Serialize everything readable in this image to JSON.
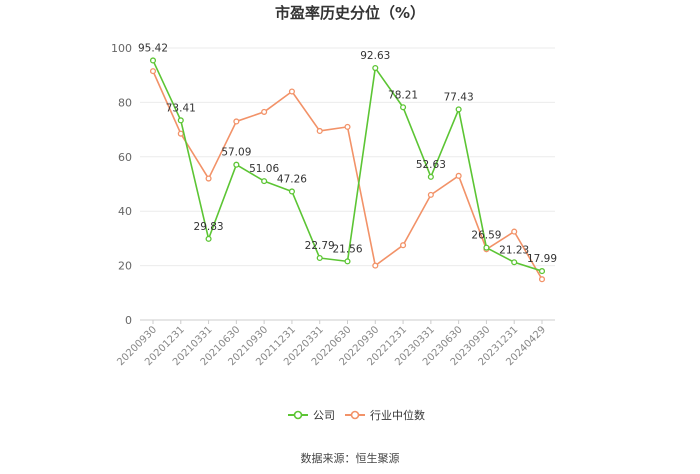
{
  "chart_data": {
    "type": "line",
    "title": "市盈率历史分位（%）",
    "xlabel": "",
    "ylabel": "",
    "ylim": [
      0,
      100
    ],
    "yticks": [
      0,
      20,
      40,
      60,
      80,
      100
    ],
    "grid": true,
    "legend": "bottom",
    "categories": [
      "20200930",
      "20201231",
      "20210331",
      "20210630",
      "20210930",
      "20211231",
      "20220331",
      "20220630",
      "20220930",
      "20221231",
      "20230331",
      "20230630",
      "20230930",
      "20231231",
      "20240429"
    ],
    "series": [
      {
        "name": "公司",
        "color": "#5cc534",
        "values": [
          95.42,
          73.41,
          29.83,
          57.09,
          51.06,
          47.26,
          22.79,
          21.56,
          92.63,
          78.21,
          52.63,
          77.43,
          26.59,
          21.23,
          17.99
        ],
        "labels": [
          "95.42",
          "73.41",
          "29.83",
          "57.09",
          "51.06",
          "47.26",
          "22.79",
          "21.56",
          "92.63",
          "78.21",
          "52.63",
          "77.43",
          "26.59",
          "21.23",
          "17.99"
        ]
      },
      {
        "name": "行业中位数",
        "color": "#f29268",
        "values": [
          91.5,
          68.5,
          52.0,
          73.0,
          76.5,
          84.0,
          69.5,
          71.0,
          20.0,
          27.5,
          46.0,
          53.0,
          26.0,
          32.5,
          15.0
        ]
      }
    ]
  },
  "source": "数据来源：恒生聚源"
}
